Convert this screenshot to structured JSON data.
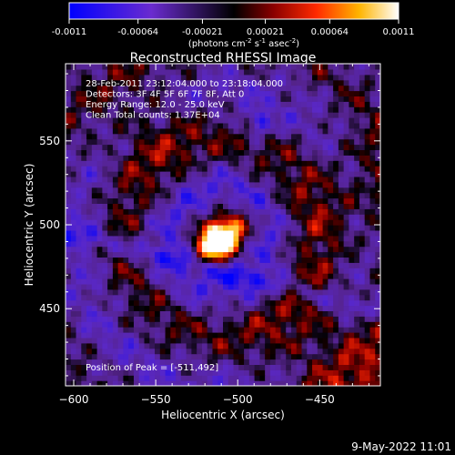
{
  "colorbar": {
    "ticks": [
      -0.0011,
      -0.00064,
      -0.00021,
      0.00021,
      0.00064,
      0.0011
    ],
    "tick_labels": [
      "-0.0011",
      "-0.00064",
      "-0.00021",
      "0.00021",
      "0.00064",
      "0.0011"
    ],
    "range": [
      -0.0011,
      0.0011
    ],
    "units_label": "(photons cm",
    "units_exp1": "-2",
    "units_mid": " s",
    "units_exp2": "-1",
    "units_end": " asec",
    "units_exp3": "-2",
    "units_close": ")"
  },
  "chart_data": {
    "type": "heatmap",
    "title": "Reconstructed RHESSI Image",
    "xlabel": "Heliocentric X (arcsec)",
    "ylabel": "Heliocentric Y (arcsec)",
    "xlim": [
      -605,
      -413
    ],
    "ylim": [
      404,
      596
    ],
    "x_ticks": [
      -600,
      -550,
      -500,
      -450
    ],
    "x_tick_labels": [
      "−600",
      "−550",
      "−500",
      "−450"
    ],
    "y_ticks": [
      450,
      500,
      550
    ],
    "y_tick_labels": [
      "450",
      "500",
      "550"
    ],
    "colormap": "hot-blue (negative blue/purple, positive red-yellow-white)",
    "peak": [
      -511,
      492
    ],
    "features": [
      {
        "type": "bright-source",
        "center": [
          -511,
          492
        ],
        "value": 0.0011
      },
      {
        "type": "negative-patch",
        "center": [
          -487,
          560
        ],
        "value": -0.0006
      }
    ],
    "annotations": [
      "28-Feb-2011 23:12:04.000 to 23:18:04.000",
      "Detectors: 3F 4F 5F 6F 7F 8F, Att 0",
      "Energy Range: 12.0 - 25.0 keV",
      "Clean     Total counts: 1.37E+04"
    ],
    "peak_label": "Position of Peak = [-511,492]"
  },
  "footer": {
    "timestamp": "9-May-2022 11:01"
  }
}
